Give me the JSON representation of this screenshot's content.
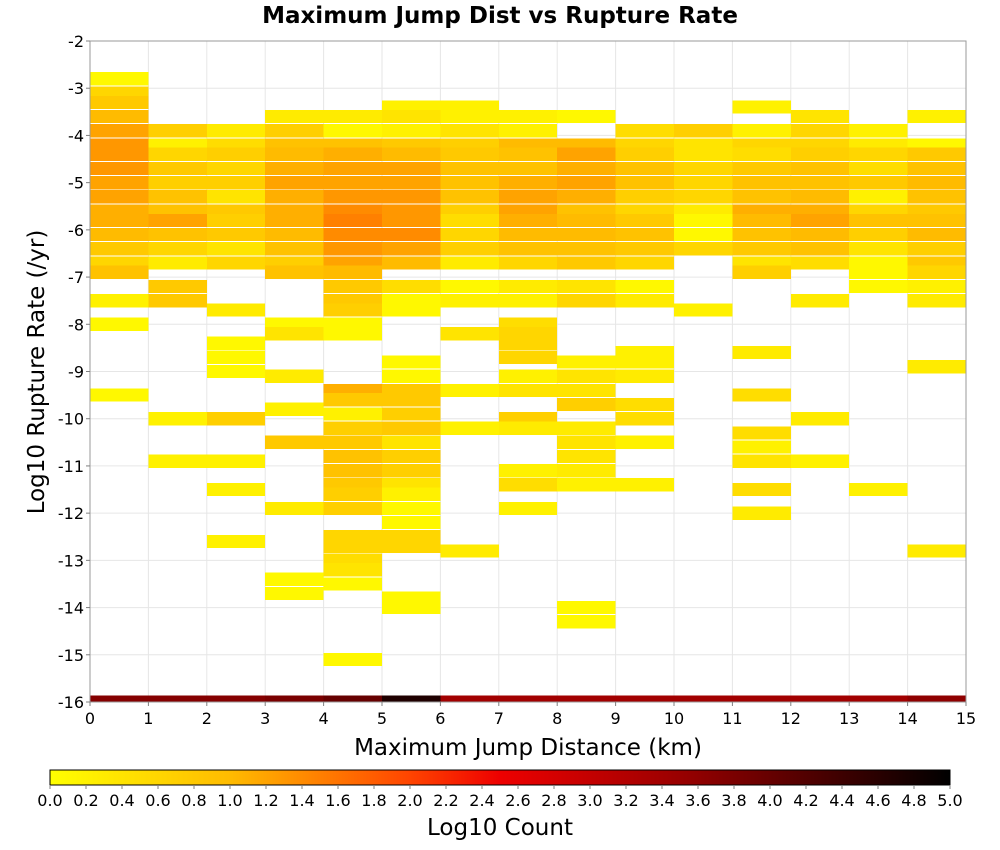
{
  "chart_data": {
    "type": "heatmap",
    "title": "Maximum Jump Dist vs Rupture Rate",
    "xlabel": "Maximum Jump Distance (km)",
    "ylabel": "Log10 Rupture Rate (/yr)",
    "xlim": [
      0,
      15
    ],
    "ylim": [
      -16,
      -2
    ],
    "x_ticks": [
      "0",
      "1",
      "2",
      "3",
      "4",
      "5",
      "6",
      "7",
      "8",
      "9",
      "10",
      "11",
      "12",
      "13",
      "14",
      "15"
    ],
    "y_ticks": [
      "-2",
      "-3",
      "-4",
      "-5",
      "-6",
      "-7",
      "-8",
      "-9",
      "-10",
      "-11",
      "-12",
      "-13",
      "-14",
      "-15",
      "-16"
    ],
    "grid": true,
    "x_bin_width": 1,
    "y_bin_height": 0.28,
    "colorbar": {
      "label": "Log10 Count",
      "min": 0.0,
      "max": 5.0,
      "ticks": [
        "0.0",
        "0.2",
        "0.4",
        "0.6",
        "0.8",
        "1.0",
        "1.2",
        "1.4",
        "1.6",
        "1.8",
        "2.0",
        "2.2",
        "2.4",
        "2.6",
        "2.8",
        "3.0",
        "3.2",
        "3.4",
        "3.6",
        "3.8",
        "4.0",
        "4.2",
        "4.4",
        "4.6",
        "4.8",
        "5.0"
      ],
      "stops": [
        {
          "v": 0.0,
          "color": "#ffff00"
        },
        {
          "v": 1.0,
          "color": "#ffbb00"
        },
        {
          "v": 2.0,
          "color": "#ff4400"
        },
        {
          "v": 2.5,
          "color": "#ee0000"
        },
        {
          "v": 3.5,
          "color": "#990000"
        },
        {
          "v": 5.0,
          "color": "#000000"
        }
      ]
    },
    "bottom_row": {
      "y": -16,
      "values": [
        3.7,
        3.7,
        3.7,
        3.8,
        4.0,
        4.7,
        3.4,
        3.4,
        3.4,
        3.4,
        3.4,
        3.4,
        3.4,
        3.4,
        3.6
      ]
    },
    "cells": [
      [
        0,
        -2.8,
        0.1
      ],
      [
        0,
        -3.1,
        0.6
      ],
      [
        0,
        -3.3,
        0.8
      ],
      [
        0,
        -3.6,
        1.0
      ],
      [
        0,
        -3.9,
        1.2
      ],
      [
        0,
        -4.2,
        1.3
      ],
      [
        0,
        -4.4,
        1.3
      ],
      [
        0,
        -4.7,
        1.3
      ],
      [
        0,
        -5.0,
        1.2
      ],
      [
        0,
        -5.3,
        1.2
      ],
      [
        0,
        -5.6,
        1.1
      ],
      [
        0,
        -5.8,
        1.1
      ],
      [
        0,
        -6.1,
        1.0
      ],
      [
        0,
        -6.4,
        0.8
      ],
      [
        0,
        -6.7,
        0.6
      ],
      [
        0,
        -6.9,
        0.9
      ],
      [
        0,
        -7.5,
        0.2
      ],
      [
        0,
        -8.0,
        0.1
      ],
      [
        0,
        -9.5,
        0.1
      ],
      [
        1,
        -3.9,
        0.7
      ],
      [
        1,
        -4.2,
        0.2
      ],
      [
        1,
        -4.4,
        0.6
      ],
      [
        1,
        -4.7,
        0.8
      ],
      [
        1,
        -5.0,
        0.7
      ],
      [
        1,
        -5.3,
        0.9
      ],
      [
        1,
        -5.6,
        0.9
      ],
      [
        1,
        -5.8,
        1.2
      ],
      [
        1,
        -6.1,
        0.9
      ],
      [
        1,
        -6.4,
        0.6
      ],
      [
        1,
        -6.7,
        0.3
      ],
      [
        1,
        -7.2,
        0.8
      ],
      [
        1,
        -7.5,
        0.8
      ],
      [
        1,
        -10.0,
        0.2
      ],
      [
        1,
        -10.9,
        0.2
      ],
      [
        2,
        -3.9,
        0.3
      ],
      [
        2,
        -4.2,
        0.5
      ],
      [
        2,
        -4.4,
        0.7
      ],
      [
        2,
        -4.7,
        0.6
      ],
      [
        2,
        -5.0,
        0.7
      ],
      [
        2,
        -5.3,
        0.4
      ],
      [
        2,
        -5.6,
        0.8
      ],
      [
        2,
        -5.8,
        0.7
      ],
      [
        2,
        -6.1,
        0.8
      ],
      [
        2,
        -6.4,
        0.4
      ],
      [
        2,
        -6.7,
        0.6
      ],
      [
        2,
        -7.7,
        0.3
      ],
      [
        2,
        -8.4,
        0.1
      ],
      [
        2,
        -8.7,
        0.1
      ],
      [
        2,
        -9.0,
        0.1
      ],
      [
        2,
        -10.0,
        0.7
      ],
      [
        2,
        -10.9,
        0.2
      ],
      [
        2,
        -11.5,
        0.2
      ],
      [
        2,
        -12.6,
        0.2
      ],
      [
        3,
        -3.6,
        0.3
      ],
      [
        3,
        -3.9,
        0.7
      ],
      [
        3,
        -4.2,
        0.9
      ],
      [
        3,
        -4.4,
        1.0
      ],
      [
        3,
        -4.7,
        1.1
      ],
      [
        3,
        -5.0,
        1.2
      ],
      [
        3,
        -5.3,
        1.1
      ],
      [
        3,
        -5.6,
        1.1
      ],
      [
        3,
        -5.8,
        1.1
      ],
      [
        3,
        -6.1,
        1.0
      ],
      [
        3,
        -6.4,
        0.9
      ],
      [
        3,
        -6.7,
        0.7
      ],
      [
        3,
        -6.9,
        0.9
      ],
      [
        3,
        -8.0,
        0.1
      ],
      [
        3,
        -8.2,
        0.4
      ],
      [
        3,
        -9.1,
        0.3
      ],
      [
        3,
        -9.8,
        0.2
      ],
      [
        3,
        -10.5,
        0.8
      ],
      [
        3,
        -11.9,
        0.3
      ],
      [
        3,
        -13.4,
        0.1
      ],
      [
        3,
        -13.7,
        0.1
      ],
      [
        4,
        -3.6,
        0.3
      ],
      [
        4,
        -3.9,
        0.1
      ],
      [
        4,
        -4.2,
        0.9
      ],
      [
        4,
        -4.4,
        1.1
      ],
      [
        4,
        -4.7,
        1.2
      ],
      [
        4,
        -5.0,
        1.2
      ],
      [
        4,
        -5.3,
        1.3
      ],
      [
        4,
        -5.6,
        1.4
      ],
      [
        4,
        -5.8,
        1.5
      ],
      [
        4,
        -6.1,
        1.4
      ],
      [
        4,
        -6.4,
        1.3
      ],
      [
        4,
        -6.7,
        1.2
      ],
      [
        4,
        -6.9,
        1.0
      ],
      [
        4,
        -7.2,
        0.8
      ],
      [
        4,
        -7.5,
        0.8
      ],
      [
        4,
        -7.7,
        0.7
      ],
      [
        4,
        -8.0,
        0.1
      ],
      [
        4,
        -8.2,
        0.1
      ],
      [
        4,
        -9.4,
        1.1
      ],
      [
        4,
        -9.6,
        0.8
      ],
      [
        4,
        -9.9,
        0.2
      ],
      [
        4,
        -10.2,
        0.7
      ],
      [
        4,
        -10.5,
        0.8
      ],
      [
        4,
        -10.8,
        0.9
      ],
      [
        4,
        -11.1,
        0.9
      ],
      [
        4,
        -11.4,
        0.8
      ],
      [
        4,
        -11.6,
        0.7
      ],
      [
        4,
        -11.9,
        0.7
      ],
      [
        4,
        -12.5,
        0.6
      ],
      [
        4,
        -12.7,
        0.6
      ],
      [
        4,
        -13.0,
        0.5
      ],
      [
        4,
        -13.2,
        0.4
      ],
      [
        4,
        -13.5,
        0.1
      ],
      [
        4,
        -15.1,
        0.1
      ],
      [
        5,
        -3.4,
        0.2
      ],
      [
        5,
        -3.6,
        0.4
      ],
      [
        5,
        -3.9,
        0.2
      ],
      [
        5,
        -4.2,
        0.8
      ],
      [
        5,
        -4.4,
        1.0
      ],
      [
        5,
        -4.7,
        1.2
      ],
      [
        5,
        -5.0,
        1.2
      ],
      [
        5,
        -5.3,
        1.3
      ],
      [
        5,
        -5.6,
        1.3
      ],
      [
        5,
        -5.8,
        1.3
      ],
      [
        5,
        -6.1,
        1.4
      ],
      [
        5,
        -6.4,
        1.2
      ],
      [
        5,
        -6.7,
        1.0
      ],
      [
        5,
        -7.2,
        0.5
      ],
      [
        5,
        -7.5,
        0.1
      ],
      [
        5,
        -7.7,
        0.1
      ],
      [
        5,
        -8.8,
        0.1
      ],
      [
        5,
        -9.1,
        0.1
      ],
      [
        5,
        -9.4,
        0.8
      ],
      [
        5,
        -9.6,
        0.8
      ],
      [
        5,
        -9.9,
        0.7
      ],
      [
        5,
        -10.2,
        0.8
      ],
      [
        5,
        -10.5,
        0.4
      ],
      [
        5,
        -10.8,
        0.7
      ],
      [
        5,
        -11.1,
        0.7
      ],
      [
        5,
        -11.4,
        0.4
      ],
      [
        5,
        -11.6,
        0.2
      ],
      [
        5,
        -11.9,
        0.1
      ],
      [
        5,
        -12.2,
        0.1
      ],
      [
        5,
        -12.5,
        0.6
      ],
      [
        5,
        -12.7,
        0.6
      ],
      [
        5,
        -13.8,
        0.1
      ],
      [
        5,
        -14.0,
        0.1
      ],
      [
        6,
        -3.4,
        0.2
      ],
      [
        6,
        -3.6,
        0.2
      ],
      [
        6,
        -3.9,
        0.4
      ],
      [
        6,
        -4.2,
        0.7
      ],
      [
        6,
        -4.4,
        0.8
      ],
      [
        6,
        -4.7,
        0.9
      ],
      [
        6,
        -5.0,
        0.9
      ],
      [
        6,
        -5.3,
        0.9
      ],
      [
        6,
        -5.6,
        0.7
      ],
      [
        6,
        -5.8,
        0.5
      ],
      [
        6,
        -6.1,
        0.6
      ],
      [
        6,
        -6.4,
        0.7
      ],
      [
        6,
        -6.7,
        0.3
      ],
      [
        6,
        -7.2,
        0.1
      ],
      [
        6,
        -7.5,
        0.2
      ],
      [
        6,
        -8.2,
        0.4
      ],
      [
        6,
        -9.4,
        0.2
      ],
      [
        6,
        -10.2,
        0.2
      ],
      [
        6,
        -12.8,
        0.3
      ],
      [
        7,
        -3.6,
        0.2
      ],
      [
        7,
        -3.9,
        0.2
      ],
      [
        7,
        -4.2,
        1.0
      ],
      [
        7,
        -4.4,
        0.9
      ],
      [
        7,
        -4.7,
        0.9
      ],
      [
        7,
        -5.0,
        1.1
      ],
      [
        7,
        -5.3,
        1.2
      ],
      [
        7,
        -5.6,
        1.2
      ],
      [
        7,
        -5.8,
        1.1
      ],
      [
        7,
        -6.1,
        1.0
      ],
      [
        7,
        -6.4,
        0.9
      ],
      [
        7,
        -6.7,
        0.6
      ],
      [
        7,
        -7.2,
        0.3
      ],
      [
        7,
        -7.5,
        0.2
      ],
      [
        7,
        -8.0,
        0.5
      ],
      [
        7,
        -8.2,
        0.6
      ],
      [
        7,
        -8.4,
        0.6
      ],
      [
        7,
        -8.7,
        0.6
      ],
      [
        7,
        -9.1,
        0.2
      ],
      [
        7,
        -9.4,
        0.4
      ],
      [
        7,
        -10.0,
        0.7
      ],
      [
        7,
        -10.2,
        0.3
      ],
      [
        7,
        -11.1,
        0.2
      ],
      [
        7,
        -11.4,
        0.5
      ],
      [
        7,
        -11.9,
        0.2
      ],
      [
        8,
        -3.6,
        0.1
      ],
      [
        8,
        -4.2,
        1.0
      ],
      [
        8,
        -4.4,
        1.2
      ],
      [
        8,
        -4.7,
        1.1
      ],
      [
        8,
        -5.0,
        1.2
      ],
      [
        8,
        -5.3,
        1.1
      ],
      [
        8,
        -5.6,
        0.9
      ],
      [
        8,
        -5.8,
        1.0
      ],
      [
        8,
        -6.1,
        1.0
      ],
      [
        8,
        -6.4,
        0.9
      ],
      [
        8,
        -6.7,
        0.8
      ],
      [
        8,
        -7.2,
        0.4
      ],
      [
        8,
        -7.5,
        0.6
      ],
      [
        8,
        -8.8,
        0.2
      ],
      [
        8,
        -9.1,
        0.4
      ],
      [
        8,
        -9.4,
        0.4
      ],
      [
        8,
        -9.7,
        0.7
      ],
      [
        8,
        -10.2,
        0.3
      ],
      [
        8,
        -10.5,
        0.4
      ],
      [
        8,
        -10.8,
        0.4
      ],
      [
        8,
        -11.1,
        0.3
      ],
      [
        8,
        -11.4,
        0.2
      ],
      [
        8,
        -14.0,
        0.1
      ],
      [
        8,
        -14.3,
        0.1
      ],
      [
        9,
        -3.9,
        0.5
      ],
      [
        9,
        -4.2,
        0.6
      ],
      [
        9,
        -4.4,
        0.7
      ],
      [
        9,
        -4.7,
        0.9
      ],
      [
        9,
        -5.0,
        0.9
      ],
      [
        9,
        -5.3,
        0.7
      ],
      [
        9,
        -5.6,
        0.6
      ],
      [
        9,
        -5.8,
        0.8
      ],
      [
        9,
        -6.1,
        0.9
      ],
      [
        9,
        -6.4,
        0.8
      ],
      [
        9,
        -6.7,
        0.6
      ],
      [
        9,
        -7.2,
        0.1
      ],
      [
        9,
        -7.5,
        0.3
      ],
      [
        9,
        -8.6,
        0.2
      ],
      [
        9,
        -8.8,
        0.2
      ],
      [
        9,
        -9.1,
        0.3
      ],
      [
        9,
        -9.7,
        0.5
      ],
      [
        9,
        -10.0,
        0.5
      ],
      [
        9,
        -10.5,
        0.2
      ],
      [
        9,
        -11.4,
        0.2
      ],
      [
        10,
        -3.9,
        0.7
      ],
      [
        10,
        -4.2,
        0.4
      ],
      [
        10,
        -4.4,
        0.4
      ],
      [
        10,
        -4.7,
        0.6
      ],
      [
        10,
        -5.0,
        0.6
      ],
      [
        10,
        -5.3,
        0.6
      ],
      [
        10,
        -5.6,
        0.3
      ],
      [
        10,
        -5.8,
        0.1
      ],
      [
        10,
        -6.1,
        0.1
      ],
      [
        10,
        -6.4,
        0.6
      ],
      [
        10,
        -7.7,
        0.2
      ],
      [
        11,
        -3.4,
        0.2
      ],
      [
        11,
        -3.9,
        0.2
      ],
      [
        11,
        -4.2,
        0.6
      ],
      [
        11,
        -4.4,
        0.5
      ],
      [
        11,
        -4.7,
        0.8
      ],
      [
        11,
        -5.0,
        0.9
      ],
      [
        11,
        -5.3,
        0.9
      ],
      [
        11,
        -5.6,
        1.1
      ],
      [
        11,
        -5.8,
        1.0
      ],
      [
        11,
        -6.1,
        0.9
      ],
      [
        11,
        -6.4,
        0.8
      ],
      [
        11,
        -6.7,
        0.4
      ],
      [
        11,
        -6.9,
        0.7
      ],
      [
        11,
        -8.6,
        0.3
      ],
      [
        11,
        -9.5,
        0.5
      ],
      [
        11,
        -10.3,
        0.5
      ],
      [
        11,
        -10.6,
        0.2
      ],
      [
        11,
        -10.9,
        0.4
      ],
      [
        11,
        -11.5,
        0.5
      ],
      [
        11,
        -12.0,
        0.3
      ],
      [
        12,
        -3.6,
        0.4
      ],
      [
        12,
        -3.9,
        0.6
      ],
      [
        12,
        -4.2,
        0.6
      ],
      [
        12,
        -4.4,
        0.7
      ],
      [
        12,
        -4.7,
        0.9
      ],
      [
        12,
        -5.0,
        0.9
      ],
      [
        12,
        -5.3,
        1.0
      ],
      [
        12,
        -5.6,
        1.1
      ],
      [
        12,
        -5.8,
        1.2
      ],
      [
        12,
        -6.1,
        1.0
      ],
      [
        12,
        -6.4,
        0.9
      ],
      [
        12,
        -6.7,
        0.5
      ],
      [
        12,
        -7.5,
        0.3
      ],
      [
        12,
        -10.0,
        0.3
      ],
      [
        12,
        -10.9,
        0.2
      ],
      [
        13,
        -3.9,
        0.2
      ],
      [
        13,
        -4.2,
        0.3
      ],
      [
        13,
        -4.4,
        0.6
      ],
      [
        13,
        -4.7,
        0.5
      ],
      [
        13,
        -5.0,
        0.8
      ],
      [
        13,
        -5.3,
        0.2
      ],
      [
        13,
        -5.6,
        0.6
      ],
      [
        13,
        -5.8,
        0.9
      ],
      [
        13,
        -6.1,
        0.7
      ],
      [
        13,
        -6.4,
        0.4
      ],
      [
        13,
        -6.7,
        0.1
      ],
      [
        13,
        -6.9,
        0.1
      ],
      [
        13,
        -7.2,
        0.1
      ],
      [
        13,
        -11.5,
        0.2
      ],
      [
        14,
        -3.6,
        0.2
      ],
      [
        14,
        -4.2,
        0.1
      ],
      [
        14,
        -4.4,
        0.8
      ],
      [
        14,
        -4.7,
        0.9
      ],
      [
        14,
        -5.0,
        1.0
      ],
      [
        14,
        -5.3,
        0.9
      ],
      [
        14,
        -5.6,
        0.8
      ],
      [
        14,
        -5.8,
        0.9
      ],
      [
        14,
        -6.1,
        1.0
      ],
      [
        14,
        -6.4,
        0.7
      ],
      [
        14,
        -6.7,
        0.8
      ],
      [
        14,
        -6.9,
        0.6
      ],
      [
        14,
        -7.2,
        0.2
      ],
      [
        14,
        -7.5,
        0.3
      ],
      [
        14,
        -8.9,
        0.3
      ],
      [
        14,
        -12.8,
        0.3
      ]
    ]
  }
}
